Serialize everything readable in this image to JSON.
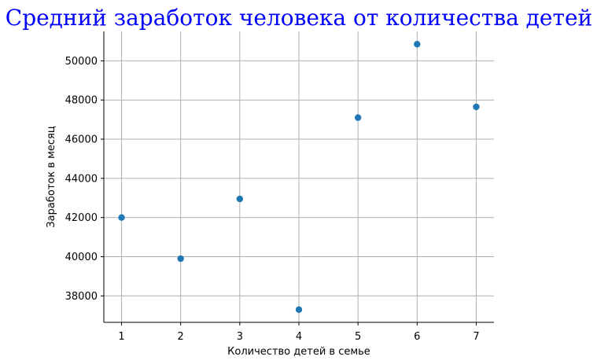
{
  "chart_data": {
    "type": "scatter",
    "title": "Средний заработок человека от количества детей",
    "xlabel": "Количество детей в семье",
    "ylabel": "Заработок в месяц",
    "x": [
      1,
      2,
      3,
      4,
      5,
      6,
      7
    ],
    "y": [
      42000,
      39900,
      42950,
      37300,
      47100,
      50850,
      47650
    ],
    "xlim": [
      0.7,
      7.3
    ],
    "ylim": [
      36650,
      51500
    ],
    "xticks": [
      1,
      2,
      3,
      4,
      5,
      6,
      7
    ],
    "yticks": [
      38000,
      40000,
      42000,
      44000,
      46000,
      48000,
      50000
    ],
    "grid": true,
    "marker_color": "#1f77b4",
    "title_color": "#0000ff"
  }
}
